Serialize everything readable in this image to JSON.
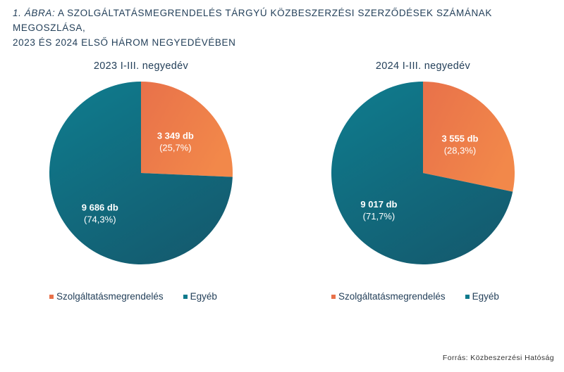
{
  "figure": {
    "title_prefix": "1. ábra:",
    "title_line1": "a szolgáltatásmegrendelés tárgyú közbeszerzési szerződések számának megoszlása,",
    "title_line2": "2023 és 2024 első három negyedévében",
    "source": "Forrás: Közbeszerzési Hatóság"
  },
  "colors": {
    "service": "#e8714a",
    "service_light": "#f2884a",
    "other": "#0f7a8c",
    "other_dark": "#145a6e"
  },
  "chart_data": [
    {
      "type": "pie",
      "title": "2023 I-III. negyedév",
      "legend_position": "bottom",
      "slices": [
        {
          "name": "Szolgáltatásmegrendelés",
          "value": 3349,
          "count_label": "3 349 db",
          "percent_label": "(25,7%)"
        },
        {
          "name": "Egyéb",
          "value": 9686,
          "count_label": "9 686 db",
          "percent_label": "(74,3%)"
        }
      ]
    },
    {
      "type": "pie",
      "title": "2024 I-III. negyedév",
      "legend_position": "bottom",
      "slices": [
        {
          "name": "Szolgáltatásmegrendelés",
          "value": 3555,
          "count_label": "3 555 db",
          "percent_label": "(28,3%)"
        },
        {
          "name": "Egyéb",
          "value": 9017,
          "count_label": "9 017 db",
          "percent_label": "(71,7%)"
        }
      ]
    }
  ]
}
